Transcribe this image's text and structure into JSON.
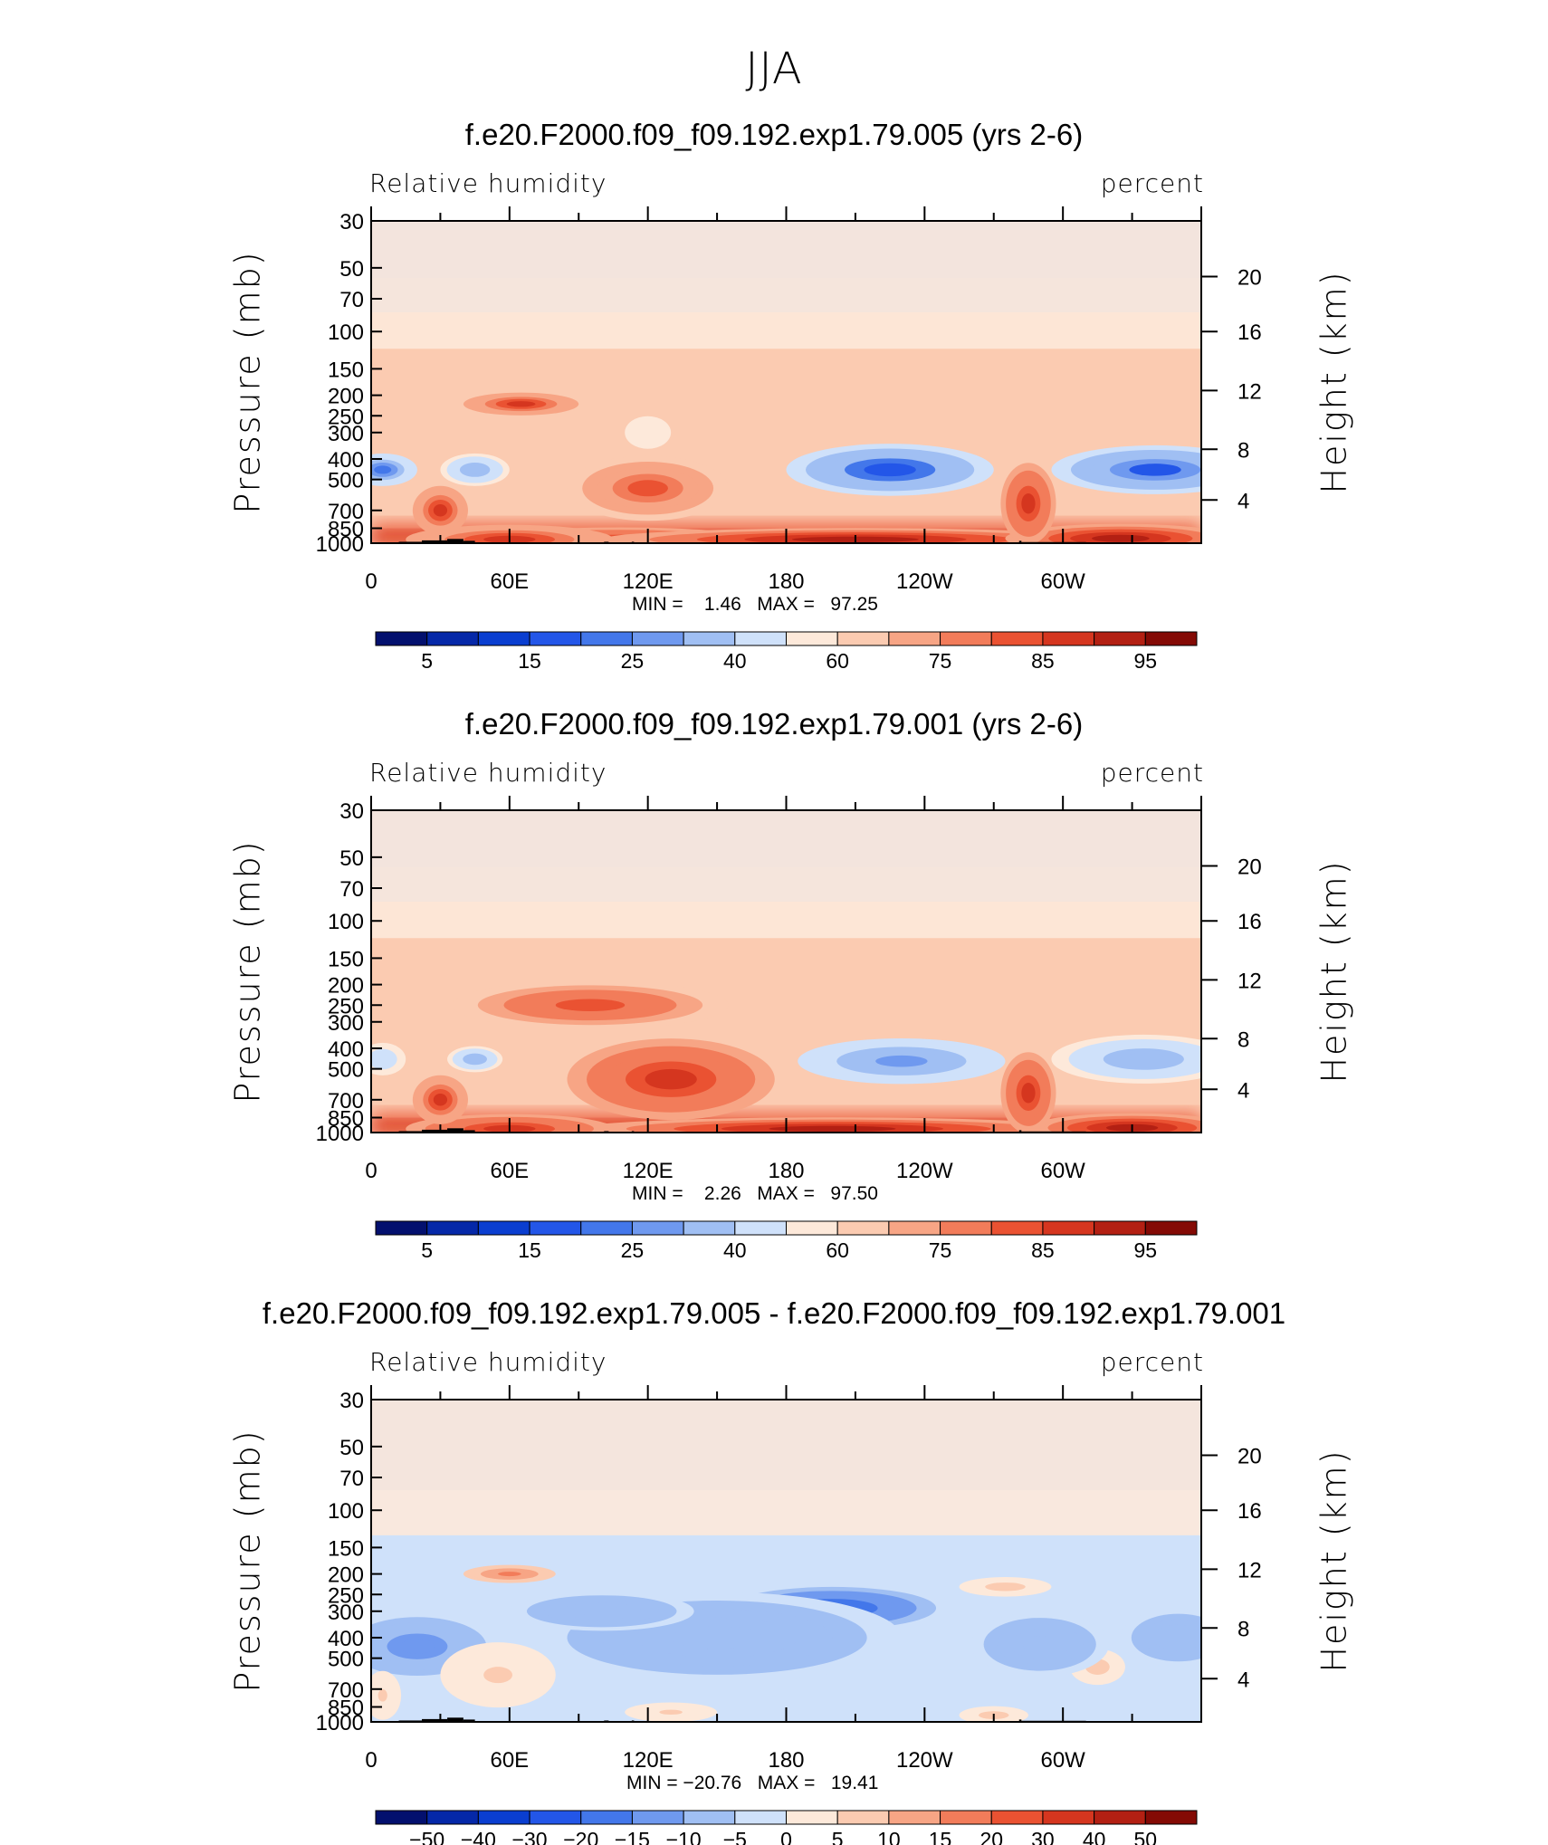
{
  "title": "JJA",
  "colors": {
    "seq": [
      "#03106e",
      "#0528a8",
      "#0a3ed0",
      "#2356e8",
      "#4377ea",
      "#6f99ef",
      "#a0bff3",
      "#cfe1fa",
      "#fde9da",
      "#fbcbb1",
      "#f7a585",
      "#f27c5a",
      "#ea5232",
      "#d5361f",
      "#b32013",
      "#840a05"
    ],
    "div": [
      "#03106e",
      "#0528a8",
      "#0a3ed0",
      "#2356e8",
      "#4377ea",
      "#6f99ef",
      "#a0bff3",
      "#cfe1fa",
      "#fde9da",
      "#fbcbb1",
      "#f7a585",
      "#f27c5a",
      "#ea5232",
      "#d5361f",
      "#b32013",
      "#840a05"
    ],
    "topo": "#000000"
  },
  "panels": [
    {
      "title": "f.e20.F2000.f09_f09.192.exp1.79.005 (yrs 2-6)",
      "left_label": "Relative humidity",
      "right_label": "percent",
      "ylabel_left": "Pressure (mb)",
      "ylabel_right": "Height (km)",
      "minmax": "MIN =    1.46   MAX =   97.25",
      "cbar_labels": [
        "5",
        "15",
        "25",
        "40",
        "60",
        "75",
        "85",
        "95"
      ]
    },
    {
      "title": "f.e20.F2000.f09_f09.192.exp1.79.001 (yrs 2-6)",
      "left_label": "Relative humidity",
      "right_label": "percent",
      "ylabel_left": "Pressure (mb)",
      "ylabel_right": "Height (km)",
      "minmax": "MIN =    2.26   MAX =   97.50",
      "cbar_labels": [
        "5",
        "15",
        "25",
        "40",
        "60",
        "75",
        "85",
        "95"
      ]
    },
    {
      "title": "f.e20.F2000.f09_f09.192.exp1.79.005 - f.e20.F2000.f09_f09.192.exp1.79.001",
      "left_label": "Relative humidity",
      "right_label": "percent",
      "ylabel_left": "Pressure (mb)",
      "ylabel_right": "Height (km)",
      "minmax": "MIN = −20.76   MAX =   19.41",
      "cbar_labels": [
        "−50",
        "−40",
        "−30",
        "−20",
        "−15",
        "−10",
        "−5",
        "0",
        "5",
        "10",
        "15",
        "20",
        "30",
        "40",
        "50"
      ]
    }
  ],
  "chart_data": [
    {
      "type": "heatmap",
      "title": "f.e20.F2000.f09_f09.192.exp1.79.005 (yrs 2-6)",
      "variable": "Relative humidity",
      "units": "percent",
      "x_ticks": [
        "0",
        "60E",
        "120E",
        "180",
        "120W",
        "60W"
      ],
      "x_range_deg": [
        0,
        360
      ],
      "y_ticks_pressure": [
        "30",
        "50",
        "70",
        "100",
        "150",
        "200",
        "250",
        "300",
        "400",
        "500",
        "700",
        "850",
        "1000"
      ],
      "y_ticks_height": [
        "20",
        "16",
        "12",
        "8",
        "4"
      ],
      "ylim_mb": [
        1000,
        30
      ],
      "levels": [
        5,
        10,
        15,
        20,
        25,
        30,
        40,
        50,
        60,
        70,
        75,
        80,
        85,
        90,
        95
      ],
      "min": 1.46,
      "max": 97.25,
      "blobs": [
        {
          "lon": 108,
          "p": 970,
          "value": 88,
          "w": 60,
          "h": 80
        },
        {
          "lon": 210,
          "p": 960,
          "value": 92,
          "w": 110,
          "h": 70
        },
        {
          "lon": 325,
          "p": 950,
          "value": 90,
          "w": 50,
          "h": 90
        },
        {
          "lon": 60,
          "p": 960,
          "value": 85,
          "w": 45,
          "h": 90
        },
        {
          "lon": 285,
          "p": 650,
          "value": 88,
          "w": 12,
          "h": 250
        },
        {
          "lon": 30,
          "p": 700,
          "value": 85,
          "w": 12,
          "h": 150
        },
        {
          "lon": 120,
          "p": 550,
          "value": 80,
          "w": 35,
          "h": 200
        },
        {
          "lon": 225,
          "p": 450,
          "value": 15,
          "w": 45,
          "h": 160
        },
        {
          "lon": 340,
          "p": 450,
          "value": 18,
          "w": 45,
          "h": 150
        },
        {
          "lon": 5,
          "p": 450,
          "value": 22,
          "w": 15,
          "h": 100
        },
        {
          "lon": 45,
          "p": 450,
          "value": 30,
          "w": 15,
          "h": 100
        },
        {
          "lon": 65,
          "p": 220,
          "value": 85,
          "w": 25,
          "h": 70
        },
        {
          "lon": 120,
          "p": 300,
          "value": 55,
          "w": 10,
          "h": 100
        }
      ]
    },
    {
      "type": "heatmap",
      "title": "f.e20.F2000.f09_f09.192.exp1.79.001 (yrs 2-6)",
      "variable": "Relative humidity",
      "units": "percent",
      "x_ticks": [
        "0",
        "60E",
        "120E",
        "180",
        "120W",
        "60W"
      ],
      "x_range_deg": [
        0,
        360
      ],
      "y_ticks_pressure": [
        "30",
        "50",
        "70",
        "100",
        "150",
        "200",
        "250",
        "300",
        "400",
        "500",
        "700",
        "850",
        "1000"
      ],
      "y_ticks_height": [
        "20",
        "16",
        "12",
        "8",
        "4"
      ],
      "ylim_mb": [
        1000,
        30
      ],
      "levels": [
        5,
        10,
        15,
        20,
        25,
        30,
        40,
        50,
        60,
        70,
        75,
        80,
        85,
        90,
        95
      ],
      "min": 2.26,
      "max": 97.5,
      "blobs": [
        {
          "lon": 200,
          "p": 960,
          "value": 92,
          "w": 110,
          "h": 70
        },
        {
          "lon": 60,
          "p": 960,
          "value": 88,
          "w": 45,
          "h": 90
        },
        {
          "lon": 330,
          "p": 950,
          "value": 90,
          "w": 45,
          "h": 90
        },
        {
          "lon": 285,
          "p": 650,
          "value": 88,
          "w": 12,
          "h": 250
        },
        {
          "lon": 30,
          "p": 700,
          "value": 85,
          "w": 12,
          "h": 150
        },
        {
          "lon": 130,
          "p": 560,
          "value": 88,
          "w": 45,
          "h": 250
        },
        {
          "lon": 95,
          "p": 250,
          "value": 82,
          "w": 60,
          "h": 150
        },
        {
          "lon": 230,
          "p": 460,
          "value": 25,
          "w": 45,
          "h": 140
        },
        {
          "lon": 335,
          "p": 450,
          "value": 32,
          "w": 40,
          "h": 150
        },
        {
          "lon": 5,
          "p": 450,
          "value": 40,
          "w": 10,
          "h": 100
        },
        {
          "lon": 45,
          "p": 450,
          "value": 35,
          "w": 12,
          "h": 80
        }
      ]
    },
    {
      "type": "heatmap",
      "title": "f.e20.F2000.f09_f09.192.exp1.79.005 - f.e20.F2000.f09_f09.192.exp1.79.001",
      "variable": "Relative humidity",
      "units": "percent",
      "x_ticks": [
        "0",
        "60E",
        "120E",
        "180",
        "120W",
        "60W"
      ],
      "x_range_deg": [
        0,
        360
      ],
      "y_ticks_pressure": [
        "30",
        "50",
        "70",
        "100",
        "150",
        "200",
        "250",
        "300",
        "400",
        "500",
        "700",
        "850",
        "1000"
      ],
      "y_ticks_height": [
        "20",
        "16",
        "12",
        "8",
        "4"
      ],
      "ylim_mb": [
        1000,
        30
      ],
      "levels": [
        -50,
        -40,
        -30,
        -20,
        -15,
        -10,
        -5,
        0,
        5,
        10,
        15,
        20,
        30,
        40,
        50
      ],
      "min": -20.76,
      "max": 19.41,
      "blobs": [
        {
          "lon": 200,
          "p": 290,
          "value": -18,
          "w": 45,
          "h": 130
        },
        {
          "lon": 60,
          "p": 200,
          "value": 18,
          "w": 20,
          "h": 40
        },
        {
          "lon": 275,
          "p": 230,
          "value": 8,
          "w": 20,
          "h": 60
        },
        {
          "lon": 315,
          "p": 550,
          "value": 8,
          "w": 12,
          "h": 110
        },
        {
          "lon": 20,
          "p": 440,
          "value": -12,
          "w": 30,
          "h": 180
        },
        {
          "lon": 150,
          "p": 400,
          "value": -10,
          "w": 80,
          "h": 280
        },
        {
          "lon": 100,
          "p": 300,
          "value": -10,
          "w": 40,
          "h": 120
        },
        {
          "lon": 290,
          "p": 430,
          "value": -8,
          "w": 30,
          "h": 200
        },
        {
          "lon": 350,
          "p": 400,
          "value": -10,
          "w": 25,
          "h": 180
        },
        {
          "lon": 55,
          "p": 600,
          "value": 6,
          "w": 25,
          "h": 200
        },
        {
          "lon": 130,
          "p": 900,
          "value": 6,
          "w": 20,
          "h": 60
        },
        {
          "lon": 270,
          "p": 930,
          "value": 7,
          "w": 15,
          "h": 50
        },
        {
          "lon": 5,
          "p": 750,
          "value": 5,
          "w": 8,
          "h": 150
        }
      ]
    }
  ]
}
